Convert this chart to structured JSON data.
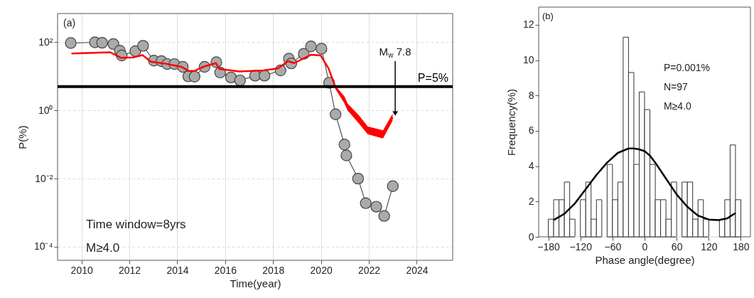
{
  "chart_data": [
    {
      "type": "line",
      "xlabel": "Time(year)",
      "ylabel": "P(%)",
      "log": "y",
      "grid": true,
      "xlim": [
        2009,
        2025.5
      ],
      "xticks": [
        2010,
        2012,
        2014,
        2016,
        2018,
        2020,
        2022,
        2024
      ],
      "ylim": [
        4e-05,
        700
      ],
      "yticks": [
        {
          "value": 0.0001,
          "label": "10⁻⁴"
        },
        {
          "value": 0.01,
          "label": "10⁻²"
        },
        {
          "value": 1,
          "label": "10⁰"
        },
        {
          "value": 100,
          "label": "10²"
        }
      ],
      "series": [
        {
          "marker": "circle",
          "color": "#aaaaaa",
          "x": [
            2009.55,
            2010.56,
            2010.86,
            2011.33,
            2011.6,
            2011.68,
            2012.25,
            2012.57,
            2013.02,
            2013.34,
            2013.58,
            2013.88,
            2014.23,
            2014.46,
            2014.72,
            2015.14,
            2015.63,
            2015.79,
            2016.24,
            2016.62,
            2017.25,
            2017.64,
            2018.31,
            2018.66,
            2018.76,
            2019.28,
            2019.58,
            2020.02,
            2020.34,
            2020.61,
            2020.98,
            2021.06,
            2021.55,
            2021.87,
            2022.31,
            2022.64,
            2023.0
          ],
          "values": [
            95,
            100,
            97,
            89,
            57,
            41,
            55,
            79,
            29,
            28,
            23,
            23,
            19,
            10,
            9.8,
            19,
            26,
            13,
            9.3,
            7.6,
            10.5,
            10.5,
            15,
            33,
            24,
            46,
            76,
            65,
            6.5,
            0.77,
            0.1,
            0.048,
            0.01,
            0.0019,
            0.0015,
            0.0008,
            0.006
          ]
        },
        {
          "marker": "none",
          "color": "#ff0000",
          "x": [
            2009.58,
            2011.2,
            2011.65,
            2012.15,
            2012.55,
            2012.9,
            2013.53,
            2014.18,
            2014.48,
            2014.72,
            2015.12,
            2015.61,
            2015.76,
            2016.6,
            2017.6,
            2018.19,
            2018.63,
            2018.88,
            2019.58,
            2019.99,
            2020.32,
            2020.61,
            2020.98,
            2021.11,
            2021.6,
            2021.95,
            2022.59,
            2022.99
          ],
          "values": [
            47,
            51,
            35,
            36,
            42,
            27,
            23.5,
            19,
            14.5,
            14.5,
            19.5,
            24.5,
            16.5,
            14,
            15,
            17,
            28,
            24.5,
            43,
            41,
            17,
            4.7,
            2.1,
            1.3,
            0.54,
            0.26,
            0.2,
            0.63
          ],
          "lower": [
            null,
            null,
            null,
            null,
            null,
            null,
            null,
            null,
            null,
            null,
            null,
            null,
            null,
            null,
            null,
            null,
            null,
            null,
            null,
            null,
            null,
            4.2,
            1.6,
            1.0,
            0.4,
            0.2,
            0.15,
            0.5
          ],
          "upper": [
            null,
            null,
            null,
            null,
            null,
            null,
            null,
            null,
            null,
            null,
            null,
            null,
            null,
            null,
            null,
            null,
            null,
            null,
            null,
            null,
            null,
            5.2,
            2.6,
            1.6,
            0.7,
            0.34,
            0.26,
            0.8
          ]
        }
      ],
      "ref_lines": [
        {
          "axis": "y",
          "value": 5,
          "label": "P=5%",
          "color": "#000000"
        }
      ],
      "annotations": [
        "(a)",
        "Time window=8yrs",
        "M≥4.0",
        {
          "text": "M$_{w}$ 7.8",
          "x": 2023.1,
          "y": 0.7
        }
      ]
    },
    {
      "type": "histogram",
      "xlabel": "Phase angle(degree)",
      "ylabel": "Frequency(%)",
      "grid": false,
      "color": "#ffffff",
      "xlim": [
        -198,
        198
      ],
      "xticks": [
        -180,
        -120,
        -60,
        0,
        60,
        120,
        180
      ],
      "ylim": [
        0,
        13
      ],
      "yticks": [
        0,
        2,
        4,
        6,
        8,
        10,
        12
      ],
      "bins": [
        -180,
        -170,
        -160,
        -150,
        -140,
        -130,
        -120,
        -110,
        -100,
        -90,
        -80,
        -70,
        -60,
        -50,
        -40,
        -30,
        -20,
        -10,
        0,
        10,
        20,
        30,
        40,
        50,
        60,
        70,
        80,
        90,
        100,
        110,
        120,
        130,
        140,
        150,
        160,
        170,
        180
      ],
      "values": [
        1.0,
        2.1,
        2.1,
        3.1,
        1.0,
        0,
        2.1,
        3.1,
        1.0,
        2.1,
        0,
        4.1,
        2.1,
        3.1,
        11.3,
        9.3,
        4.1,
        8.2,
        7.2,
        4.1,
        2.1,
        2.1,
        1.0,
        3.1,
        0,
        3.1,
        3.1,
        1.0,
        2.1,
        1.0,
        0,
        0,
        1.0,
        2.1,
        5.2,
        2.1
      ],
      "series": [
        {
          "type": "line",
          "color": "#000000",
          "x": [
            -170,
            -150,
            -130,
            -110,
            -90,
            -70,
            -50,
            -30,
            -20,
            -10,
            0,
            10,
            20,
            40,
            60,
            80,
            100,
            120,
            140,
            155,
            170
          ],
          "values": [
            0.95,
            1.3,
            1.9,
            2.7,
            3.5,
            4.2,
            4.75,
            5.0,
            5.0,
            4.95,
            4.85,
            4.6,
            4.2,
            3.3,
            2.4,
            1.7,
            1.2,
            0.98,
            0.95,
            1.05,
            1.35
          ]
        }
      ],
      "annotations": [
        "(b)",
        "P=0.001%",
        "N=97",
        "M≥4.0"
      ]
    }
  ]
}
